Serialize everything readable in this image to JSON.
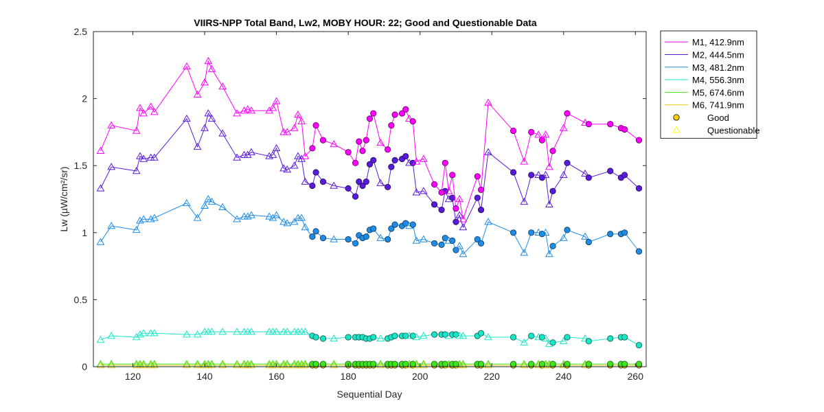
{
  "chart_data": {
    "type": "line",
    "title": "VIIRS-NPP Total Band,  Lw2, MOBY HOUR: 22;  Good and Questionable Data",
    "xlabel": "Sequential Day",
    "ylabel": "Lw (µW/cm²/sr)",
    "xlim": [
      109,
      263
    ],
    "ylim": [
      0,
      2.5
    ],
    "xticks": [
      120,
      140,
      160,
      180,
      200,
      220,
      240,
      260
    ],
    "yticks": [
      0,
      0.5,
      1,
      1.5,
      2,
      2.5
    ],
    "xtick_labels": [
      "120",
      "140",
      "160",
      "180",
      "200",
      "220",
      "240",
      "260"
    ],
    "ytick_labels": [
      "0",
      "0.5",
      "1",
      "1.5",
      "2",
      "2.5"
    ],
    "grid": false,
    "legend_position": "outside top-right",
    "x": [
      111,
      114,
      121,
      122,
      123,
      125,
      126,
      135,
      138,
      140,
      141,
      142,
      145,
      149,
      151,
      152,
      153,
      158,
      159,
      160,
      162,
      163,
      165,
      166,
      167,
      168,
      170,
      171,
      173,
      176,
      180,
      182,
      183,
      184,
      185,
      186,
      187,
      189,
      191,
      192,
      193,
      195,
      196,
      197,
      198,
      199,
      201,
      204,
      206,
      207,
      208,
      209,
      210,
      211,
      212,
      216,
      217,
      219,
      226,
      229,
      231,
      233,
      234,
      235,
      236,
      237,
      240,
      241,
      246,
      247,
      253,
      256,
      257,
      261
    ],
    "quality": [
      "Q",
      "Q",
      "Q",
      "Q",
      "Q",
      "Q",
      "Q",
      "Q",
      "Q",
      "Q",
      "Q",
      "Q",
      "Q",
      "Q",
      "Q",
      "Q",
      "Q",
      "Q",
      "Q",
      "Q",
      "Q",
      "Q",
      "Q",
      "Q",
      "Q",
      "Q",
      "G",
      "G",
      "G",
      "Q",
      "G",
      "G",
      "G",
      "G",
      "G",
      "G",
      "G",
      "Q",
      "G",
      "G",
      "G",
      "G",
      "G",
      "Q",
      "G",
      "Q",
      "Q",
      "G",
      "G",
      "G",
      "Q",
      "G",
      "G",
      "Q",
      "Q",
      "G",
      "G",
      "Q",
      "G",
      "Q",
      "G",
      "Q",
      "G",
      "Q",
      "Q",
      "G",
      "Q",
      "G",
      "Q",
      "G",
      "G",
      "G",
      "G",
      "G"
    ],
    "series": [
      {
        "name": "M1, 412.9nm",
        "color": "#ff00ff",
        "values": [
          1.61,
          1.8,
          1.76,
          1.93,
          1.89,
          1.94,
          1.9,
          2.24,
          2.03,
          2.12,
          2.28,
          2.22,
          2.09,
          1.89,
          1.91,
          1.92,
          1.91,
          1.91,
          1.93,
          1.98,
          1.75,
          1.75,
          1.78,
          1.88,
          1.83,
          1.57,
          1.63,
          1.8,
          1.69,
          1.66,
          1.6,
          1.52,
          1.68,
          1.61,
          1.69,
          1.85,
          1.89,
          1.67,
          1.62,
          1.8,
          1.88,
          1.89,
          1.92,
          1.85,
          1.83,
          1.53,
          1.55,
          1.36,
          1.3,
          1.52,
          1.31,
          1.43,
          1.18,
          1.25,
          1.1,
          1.42,
          1.32,
          1.97,
          1.76,
          1.53,
          1.75,
          1.73,
          1.69,
          1.73,
          1.49,
          1.61,
          1.78,
          1.89,
          1.82,
          1.81,
          1.81,
          1.78,
          1.77,
          1.69
        ]
      },
      {
        "name": "M2, 444.5nm",
        "color": "#5a1adc",
        "values": [
          1.33,
          1.49,
          1.46,
          1.57,
          1.55,
          1.56,
          1.56,
          1.85,
          1.64,
          1.78,
          1.89,
          1.85,
          1.74,
          1.56,
          1.58,
          1.58,
          1.6,
          1.57,
          1.58,
          1.63,
          1.48,
          1.47,
          1.5,
          1.57,
          1.55,
          1.38,
          1.35,
          1.45,
          1.38,
          1.35,
          1.33,
          1.27,
          1.38,
          1.35,
          1.38,
          1.51,
          1.54,
          1.37,
          1.34,
          1.49,
          1.54,
          1.55,
          1.57,
          1.52,
          1.52,
          1.3,
          1.31,
          1.21,
          1.17,
          1.31,
          1.25,
          1.26,
          1.08,
          1.13,
          1.04,
          1.26,
          1.17,
          1.6,
          1.45,
          1.23,
          1.43,
          1.43,
          1.41,
          1.43,
          1.21,
          1.31,
          1.43,
          1.52,
          1.44,
          1.41,
          1.46,
          1.41,
          1.43,
          1.33
        ]
      },
      {
        "name": "M3, 481.2nm",
        "color": "#1e8ce6",
        "values": [
          0.93,
          1.05,
          1.02,
          1.09,
          1.1,
          1.1,
          1.11,
          1.22,
          1.11,
          1.2,
          1.25,
          1.23,
          1.19,
          1.1,
          1.12,
          1.12,
          1.13,
          1.12,
          1.11,
          1.13,
          1.08,
          1.07,
          1.08,
          1.11,
          1.11,
          1.04,
          0.97,
          1.01,
          0.96,
          0.95,
          0.95,
          0.92,
          0.98,
          0.96,
          0.97,
          1.02,
          1.03,
          0.96,
          0.95,
          1.03,
          1.06,
          1.05,
          1.07,
          1.05,
          1.06,
          0.94,
          0.95,
          0.92,
          0.91,
          0.96,
          0.94,
          0.94,
          0.87,
          0.9,
          0.84,
          0.95,
          0.92,
          1.08,
          1.0,
          0.85,
          1.0,
          1.0,
          0.99,
          1.0,
          0.84,
          0.9,
          0.96,
          1.02,
          0.97,
          0.93,
          0.99,
          0.99,
          1.0,
          0.86
        ]
      },
      {
        "name": "M4, 556.3nm",
        "color": "#19e6c8",
        "values": [
          0.2,
          0.23,
          0.22,
          0.24,
          0.25,
          0.25,
          0.25,
          0.24,
          0.24,
          0.26,
          0.26,
          0.26,
          0.26,
          0.26,
          0.26,
          0.26,
          0.26,
          0.26,
          0.26,
          0.26,
          0.26,
          0.26,
          0.26,
          0.26,
          0.26,
          0.26,
          0.23,
          0.22,
          0.21,
          0.21,
          0.22,
          0.22,
          0.22,
          0.22,
          0.21,
          0.21,
          0.22,
          0.21,
          0.21,
          0.22,
          0.23,
          0.23,
          0.23,
          0.23,
          0.23,
          0.22,
          0.23,
          0.24,
          0.24,
          0.24,
          0.23,
          0.24,
          0.24,
          0.23,
          0.23,
          0.23,
          0.25,
          0.22,
          0.22,
          0.18,
          0.23,
          0.22,
          0.22,
          0.21,
          0.17,
          0.18,
          0.19,
          0.22,
          0.21,
          0.19,
          0.21,
          0.22,
          0.22,
          0.16
        ]
      },
      {
        "name": "M5, 674.6nm",
        "color": "#3ce61e",
        "values": [
          0.02,
          0.02,
          0.02,
          0.02,
          0.02,
          0.02,
          0.02,
          0.02,
          0.02,
          0.02,
          0.02,
          0.02,
          0.02,
          0.02,
          0.02,
          0.02,
          0.02,
          0.02,
          0.02,
          0.02,
          0.02,
          0.02,
          0.02,
          0.02,
          0.02,
          0.02,
          0.02,
          0.02,
          0.02,
          0.02,
          0.02,
          0.02,
          0.02,
          0.02,
          0.02,
          0.02,
          0.02,
          0.02,
          0.02,
          0.02,
          0.02,
          0.02,
          0.02,
          0.02,
          0.02,
          0.02,
          0.02,
          0.02,
          0.02,
          0.02,
          0.02,
          0.02,
          0.02,
          0.02,
          0.02,
          0.02,
          0.02,
          0.02,
          0.02,
          0.02,
          0.02,
          0.02,
          0.02,
          0.02,
          0.02,
          0.02,
          0.02,
          0.02,
          0.02,
          0.02,
          0.02,
          0.02,
          0.02,
          0.02
        ]
      },
      {
        "name": "M6, 741.9nm",
        "color": "#e6c81e",
        "values": [
          0.01,
          0.01,
          0.01,
          0.01,
          0.01,
          0.01,
          0.01,
          0.01,
          0.01,
          0.01,
          0.01,
          0.01,
          0.01,
          0.01,
          0.01,
          0.01,
          0.01,
          0.01,
          0.01,
          0.01,
          0.01,
          0.01,
          0.01,
          0.01,
          0.01,
          0.01,
          0.01,
          0.01,
          0.01,
          0.01,
          0.01,
          0.01,
          0.01,
          0.01,
          0.01,
          0.01,
          0.01,
          0.01,
          0.01,
          0.01,
          0.01,
          0.01,
          0.01,
          0.01,
          0.01,
          0.01,
          0.01,
          0.01,
          0.01,
          0.01,
          0.01,
          0.01,
          0.01,
          0.01,
          0.01,
          0.01,
          0.01,
          0.01,
          0.01,
          0.01,
          0.01,
          0.01,
          0.01,
          0.01,
          0.01,
          0.01,
          0.01,
          0.01,
          0.01,
          0.01,
          0.01,
          0.01,
          0.01,
          0.01
        ]
      }
    ],
    "markers": [
      {
        "name": "Good",
        "shape": "circle",
        "color": "#ffcc00"
      },
      {
        "name": "Questionable",
        "shape": "triangle",
        "color": "#ffff00"
      }
    ]
  }
}
